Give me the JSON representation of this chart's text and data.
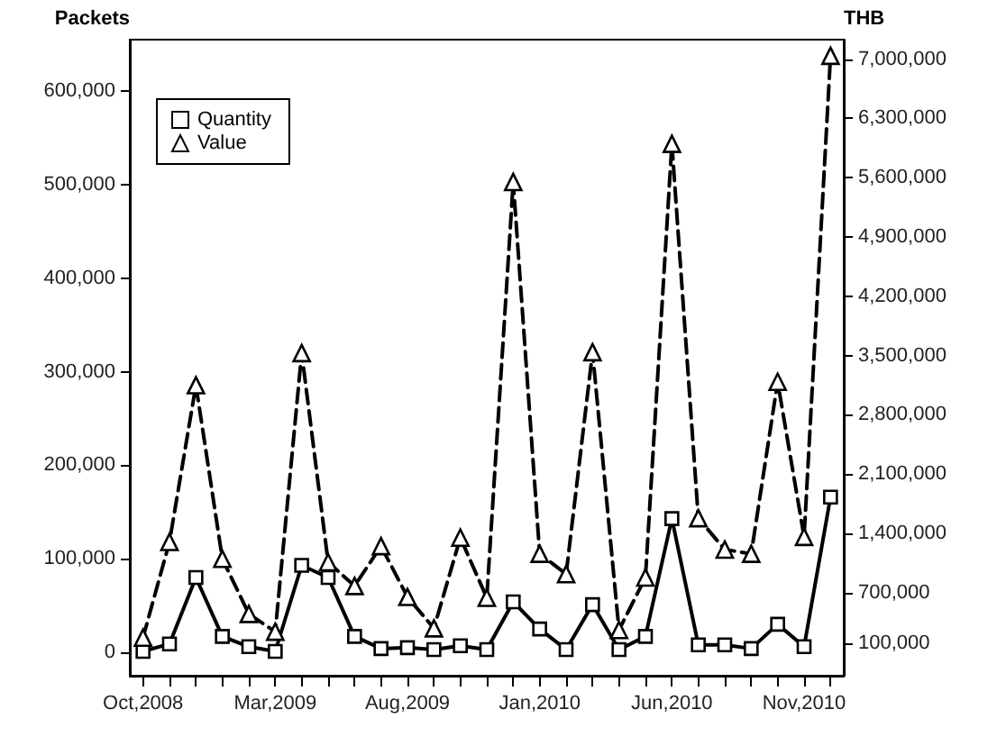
{
  "chart_data": {
    "type": "line",
    "categories": [
      "Oct,2008",
      null,
      null,
      null,
      null,
      "Mar,2009",
      null,
      null,
      null,
      null,
      "Aug,2009",
      null,
      null,
      null,
      null,
      "Jan,2010",
      null,
      null,
      null,
      null,
      "Jun,2010",
      null,
      null,
      null,
      null,
      "Nov,2010",
      null
    ],
    "ylabel": "Packets",
    "y2label": "THB",
    "ylim": [
      -25000,
      655000
    ],
    "yticks": [
      0,
      {
        "value": 100000,
        "label": "100,000"
      },
      {
        "value": 200000,
        "label": "200,000"
      },
      {
        "value": 300000,
        "label": "300,000"
      },
      {
        "value": 400000,
        "label": "400,000"
      },
      {
        "value": 500000,
        "label": "500,000"
      },
      {
        "value": 600000,
        "label": "600,000"
      }
    ],
    "y2lim": [
      -280000,
      7230000
    ],
    "y2ticks": [
      {
        "value": 100000,
        "label": "100,000"
      },
      {
        "value": 700000,
        "label": "700,000"
      },
      {
        "value": 1400000,
        "label": "1,400,000"
      },
      {
        "value": 2100000,
        "label": "2,100,000"
      },
      {
        "value": 2800000,
        "label": "2,800,000"
      },
      {
        "value": 3500000,
        "label": "3,500,000"
      },
      {
        "value": 4200000,
        "label": "4,200,000"
      },
      {
        "value": 4900000,
        "label": "4,900,000"
      },
      {
        "value": 5600000,
        "label": "5,600,000"
      },
      {
        "value": 6300000,
        "label": "6,300,000"
      },
      {
        "value": 7000000,
        "label": "7,000,000"
      }
    ],
    "series": [
      {
        "name": "Quantity",
        "color": "#000000",
        "marker": "square",
        "line_style": "solid",
        "values": [
          1000,
          9000,
          80000,
          17000,
          6000,
          1000,
          93000,
          80000,
          17000,
          4000,
          5000,
          3000,
          7000,
          3000,
          54000,
          25000,
          3000,
          51000,
          3000,
          17000,
          143000,
          8000,
          8000,
          4000,
          30000,
          6000,
          166000
        ]
      },
      {
        "name": "Value",
        "color": "#000000",
        "marker": "triangle",
        "line_style": "dashed",
        "axis": "y2",
        "values": [
          170000,
          1300000,
          3150000,
          1100000,
          450000,
          240000,
          3530000,
          1060000,
          780000,
          1250000,
          650000,
          280000,
          1350000,
          640000,
          5550000,
          1160000,
          920000,
          3540000,
          260000,
          880000,
          6000000,
          1580000,
          1210000,
          1160000,
          3190000,
          1360000,
          7040000
        ]
      }
    ],
    "legend": "top left",
    "grid": false
  }
}
